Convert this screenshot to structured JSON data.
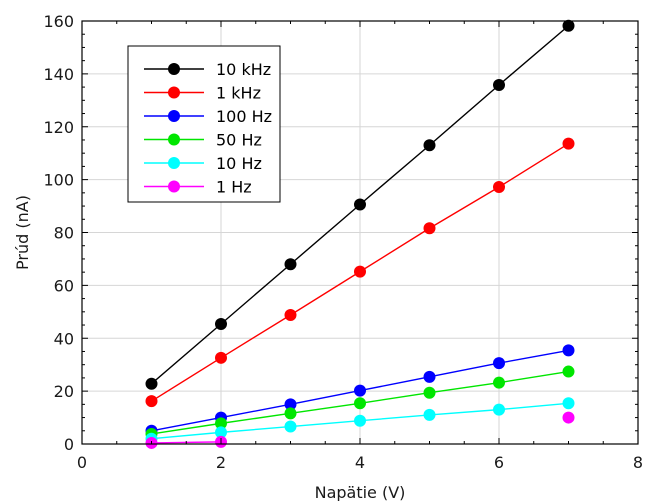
{
  "chart_data": {
    "type": "line",
    "xlabel": "Napätie (V)",
    "ylabel": "Prúd (nA)",
    "xlim": [
      0,
      8
    ],
    "ylim": [
      0,
      160
    ],
    "xticks": [
      "0",
      "2",
      "4",
      "6",
      "8"
    ],
    "yticks": [
      "0",
      "20",
      "40",
      "60",
      "80",
      "100",
      "120",
      "140",
      "160"
    ],
    "grid": true,
    "legend_position": "top-left",
    "x": [
      1,
      2,
      3,
      4,
      5,
      6,
      7
    ],
    "series": [
      {
        "name": "10 kHz",
        "color": "#000000",
        "values": [
          22.8,
          45.4,
          68.0,
          90.6,
          113.0,
          135.8,
          158.2
        ]
      },
      {
        "name": "1 kHz",
        "color": "#ff0000",
        "values": [
          16.2,
          32.6,
          48.8,
          65.2,
          81.6,
          97.2,
          113.6
        ]
      },
      {
        "name": "100 Hz",
        "color": "#0000ff",
        "values": [
          5.0,
          10.0,
          15.0,
          20.2,
          25.4,
          30.6,
          35.4
        ]
      },
      {
        "name": "50 Hz",
        "color": "#00e600",
        "values": [
          3.8,
          7.8,
          11.6,
          15.4,
          19.4,
          23.2,
          27.4
        ]
      },
      {
        "name": "10 Hz",
        "color": "#00ffff",
        "values": [
          2.0,
          4.4,
          6.6,
          8.8,
          11.0,
          13.0,
          15.4
        ]
      },
      {
        "name": "1 Hz",
        "color": "#ff00ff",
        "values": [
          0.4,
          0.8,
          null,
          null,
          null,
          null,
          10.0
        ]
      }
    ]
  }
}
